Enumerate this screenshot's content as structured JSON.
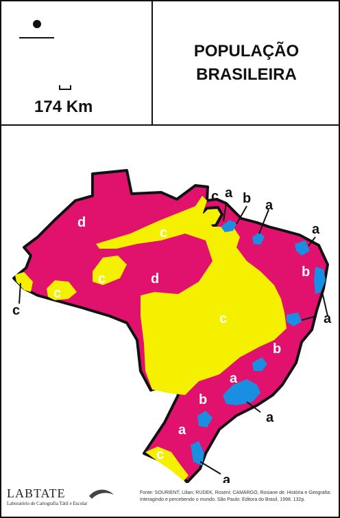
{
  "title": {
    "line1": "POPULAÇÃO",
    "line2": "BRASILEIRA"
  },
  "scale": {
    "label": "174 Km"
  },
  "colors": {
    "magenta": "#e0126e",
    "yellow": "#f5ef00",
    "blue": "#1a8ee0",
    "outline": "#111111",
    "white_label": "#ffffff",
    "black_label": "#111111"
  },
  "legend_symbols": [
    "a",
    "b",
    "c",
    "d"
  ],
  "map_labels": {
    "d_north": "d",
    "d_center": "d",
    "c_north": "c",
    "c_west_blob": "c",
    "c_acre_tip": "c",
    "c_acre_inner": "c",
    "c_central": "c",
    "c_amapa": "c",
    "c_south": "c",
    "a_top": "a",
    "b_top": "b",
    "a_ne1": "a",
    "a_ne2": "a",
    "b_ne": "b",
    "a_east": "a",
    "b_se": "b",
    "a_se": "a",
    "b_sp": "b",
    "a_sp": "a",
    "a_south": "a",
    "a_bottom": "a"
  },
  "logo": {
    "name": "LABTATE",
    "subtitle": "Laboratório de Cartografia Tátil e Escolar"
  },
  "source": {
    "text": "Fonte: SOURIENT, Lilian; RUDEK, Roseni; CAMARGO, Rosiane de. História e Geografia: Interagindo e percebendo o mundo. São Paulo: Editora do Brasil, 1998. 132p."
  }
}
